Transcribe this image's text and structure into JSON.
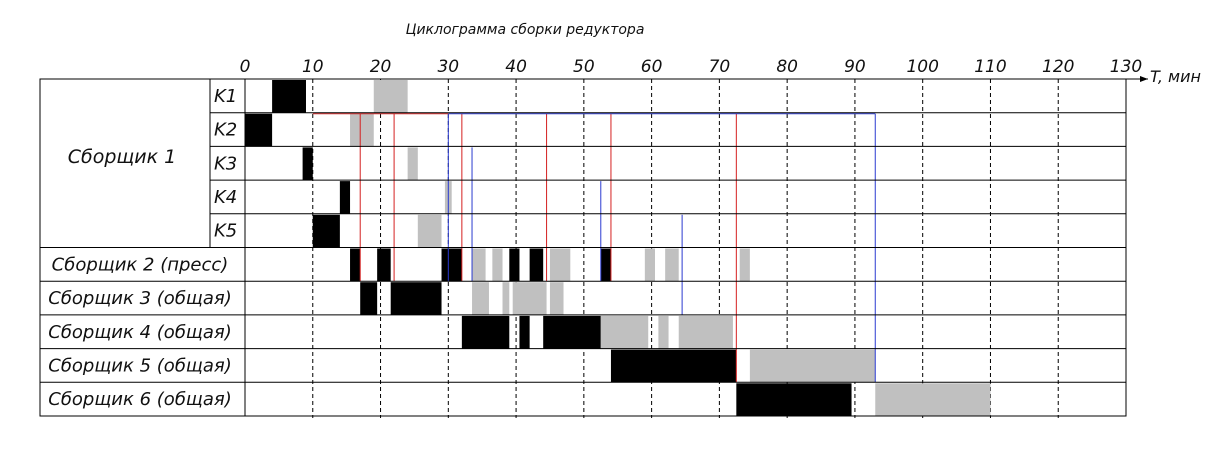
{
  "title": "Циклограмма сборки редуктора",
  "axis_label": "T, мин",
  "ticks": [
    0,
    10,
    20,
    30,
    40,
    50,
    60,
    70,
    80,
    90,
    100,
    110,
    120,
    130
  ],
  "group_label": "Сборщик 1",
  "chart_data": {
    "type": "gantt",
    "title": "Циклограмма сборки редуктора",
    "xlabel": "T, мин",
    "xlim": [
      0,
      130
    ],
    "legend": "none",
    "colors": {
      "work": "#000000",
      "wait": "#c0c0c0",
      "link_red": "#d42020",
      "link_blue": "#2a3ad0"
    },
    "rows": [
      {
        "label": "K1",
        "segments": [
          {
            "start": 4,
            "end": 9,
            "kind": "work"
          },
          {
            "start": 19,
            "end": 24,
            "kind": "wait"
          }
        ]
      },
      {
        "label": "K2",
        "segments": [
          {
            "start": 0,
            "end": 4,
            "kind": "work"
          },
          {
            "start": 15.5,
            "end": 19,
            "kind": "wait"
          }
        ]
      },
      {
        "label": "K3",
        "segments": [
          {
            "start": 8.5,
            "end": 10,
            "kind": "work"
          },
          {
            "start": 24,
            "end": 25.5,
            "kind": "wait"
          }
        ]
      },
      {
        "label": "K4",
        "segments": [
          {
            "start": 14,
            "end": 15.5,
            "kind": "work"
          },
          {
            "start": 29.5,
            "end": 30.5,
            "kind": "wait"
          }
        ]
      },
      {
        "label": "K5",
        "segments": [
          {
            "start": 10,
            "end": 14,
            "kind": "work"
          },
          {
            "start": 25.5,
            "end": 29,
            "kind": "wait"
          }
        ]
      },
      {
        "label": "Сборщик 2 (пресс)",
        "segments": [
          {
            "start": 15.5,
            "end": 17,
            "kind": "work"
          },
          {
            "start": 19.5,
            "end": 21.5,
            "kind": "work"
          },
          {
            "start": 29,
            "end": 32,
            "kind": "work"
          },
          {
            "start": 33.5,
            "end": 35.5,
            "kind": "wait"
          },
          {
            "start": 36.5,
            "end": 38,
            "kind": "wait"
          },
          {
            "start": 39,
            "end": 40.5,
            "kind": "work"
          },
          {
            "start": 42,
            "end": 44,
            "kind": "work"
          },
          {
            "start": 45,
            "end": 48,
            "kind": "wait"
          },
          {
            "start": 52.5,
            "end": 54,
            "kind": "work"
          },
          {
            "start": 59,
            "end": 60.5,
            "kind": "wait"
          },
          {
            "start": 62,
            "end": 64,
            "kind": "wait"
          },
          {
            "start": 73,
            "end": 74.5,
            "kind": "wait"
          }
        ]
      },
      {
        "label": "Сборщик 3 (общая)",
        "segments": [
          {
            "start": 17,
            "end": 19.5,
            "kind": "work"
          },
          {
            "start": 21.5,
            "end": 29,
            "kind": "work"
          },
          {
            "start": 33.5,
            "end": 36,
            "kind": "wait"
          },
          {
            "start": 38,
            "end": 39,
            "kind": "wait"
          },
          {
            "start": 39.5,
            "end": 44.5,
            "kind": "wait"
          },
          {
            "start": 45,
            "end": 47,
            "kind": "wait"
          }
        ]
      },
      {
        "label": "Сборщик 4 (общая)",
        "segments": [
          {
            "start": 32,
            "end": 39,
            "kind": "work"
          },
          {
            "start": 40.5,
            "end": 42,
            "kind": "work"
          },
          {
            "start": 44,
            "end": 52.5,
            "kind": "work"
          },
          {
            "start": 52.5,
            "end": 59.5,
            "kind": "wait"
          },
          {
            "start": 61,
            "end": 62.5,
            "kind": "wait"
          },
          {
            "start": 64,
            "end": 72,
            "kind": "wait"
          }
        ]
      },
      {
        "label": "Сборщик 5 (общая)",
        "segments": [
          {
            "start": 54,
            "end": 72.5,
            "kind": "work"
          },
          {
            "start": 74.5,
            "end": 93,
            "kind": "wait"
          }
        ]
      },
      {
        "label": "Сборщик 6 (общая)",
        "segments": [
          {
            "start": 72.5,
            "end": 89.5,
            "kind": "work"
          },
          {
            "start": 93,
            "end": 110,
            "kind": "wait"
          }
        ]
      }
    ],
    "links": [
      {
        "x": 17,
        "from_row": 1,
        "to_row": 5,
        "color": "red"
      },
      {
        "x": 22,
        "from_row": 1,
        "to_row": 5,
        "color": "red"
      },
      {
        "x": 32,
        "from_row": 1,
        "to_row": 5,
        "color": "red"
      },
      {
        "x": 44.5,
        "from_row": 1,
        "to_row": 5,
        "color": "red"
      },
      {
        "x": 54,
        "from_row": 1,
        "to_row": 5,
        "color": "red"
      },
      {
        "x": 72.5,
        "from_row": 1,
        "to_row": 8,
        "color": "red"
      },
      {
        "x": 30,
        "from_row": 1,
        "to_row": 5,
        "color": "blue"
      },
      {
        "x": 33.5,
        "from_row": 2,
        "to_row": 5,
        "color": "blue"
      },
      {
        "x": 52.5,
        "from_row": 3,
        "to_row": 5,
        "color": "blue"
      },
      {
        "x": 64.5,
        "from_row": 4,
        "to_row": 6,
        "color": "blue"
      },
      {
        "x": 93,
        "from_row": 1,
        "to_row": 8,
        "color": "blue"
      }
    ]
  }
}
